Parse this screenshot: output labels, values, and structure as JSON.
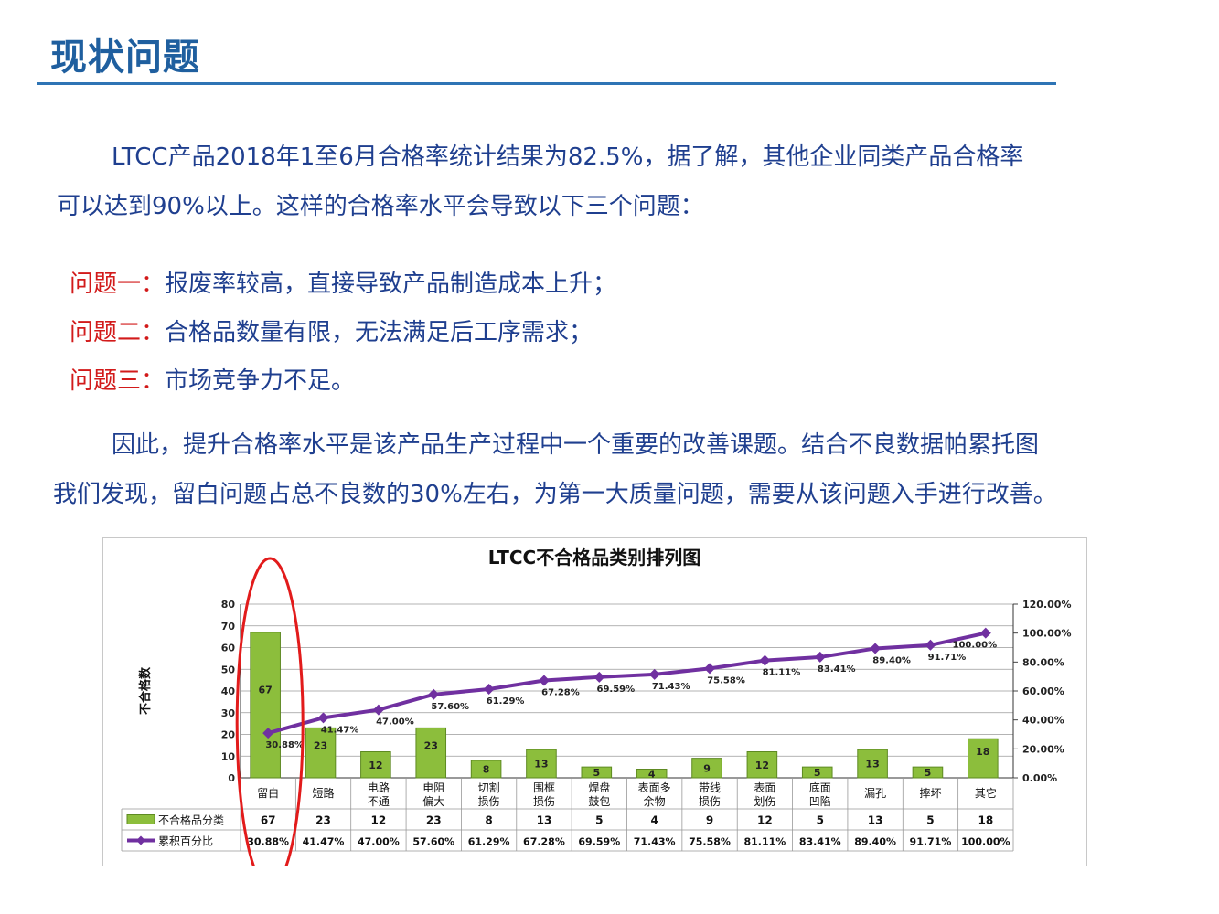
{
  "page": {
    "title": "现状问题",
    "para1_line1": "LTCC产品2018年1至6月合格率统计结果为82.5%，据了解，其他企业同类产品合格率",
    "para1_line2": "可以达到90%以上。这样的合格率水平会导致以下三个问题：",
    "problems": [
      {
        "label": "问题一：",
        "text": "报废率较高，直接导致产品制造成本上升；"
      },
      {
        "label": "问题二：",
        "text": "合格品数量有限，无法满足后工序需求；"
      },
      {
        "label": "问题三：",
        "text": "市场竞争力不足。"
      }
    ],
    "para2_line1": "因此，提升合格率水平是该产品生产过程中一个重要的改善课题。结合不良数据帕累托图",
    "para2_line2": "我们发现，留白问题占总不良数的30%左右，为第一大质量问题，需要从该问题入手进行改善。"
  },
  "chart_data": {
    "type": "bar",
    "title": "LTCC不合格品类别排列图",
    "ylabel": "不合格数",
    "categories": [
      "留白",
      "短路",
      "电路不通",
      "电阻偏大",
      "切割损伤",
      "围框损伤",
      "焊盘鼓包",
      "表面多余物",
      "带线损伤",
      "表面划伤",
      "底面凹陷",
      "漏孔",
      "摔坏",
      "其它"
    ],
    "ylim": [
      0,
      80
    ],
    "yticks": [
      "0",
      "10",
      "20",
      "30",
      "40",
      "50",
      "60",
      "70",
      "80"
    ],
    "y2lim": [
      0,
      120
    ],
    "y2ticks": [
      "0.00%",
      "20.00%",
      "40.00%",
      "60.00%",
      "80.00%",
      "100.00%",
      "120.00%"
    ],
    "series": [
      {
        "name": "不合格品分类",
        "type": "bar",
        "color": "#8cbe3c",
        "values": [
          67,
          23,
          12,
          23,
          8,
          13,
          5,
          4,
          9,
          12,
          5,
          13,
          5,
          18
        ]
      },
      {
        "name": "累积百分比",
        "type": "line",
        "axis": "right",
        "color": "#7030a0",
        "values": [
          30.88,
          41.47,
          47.0,
          57.6,
          61.29,
          67.28,
          69.59,
          71.43,
          75.58,
          81.11,
          83.41,
          89.4,
          91.71,
          100.0
        ],
        "labels": [
          "30.88%",
          "41.47%",
          "47.00%",
          "57.60%",
          "61.29%",
          "67.28%",
          "69.59%",
          "71.43%",
          "75.58%",
          "81.11%",
          "83.41%",
          "89.40%",
          "91.71%",
          "100.00%"
        ]
      }
    ],
    "table": true,
    "grid": true,
    "annotation": "red ellipse around first category"
  }
}
